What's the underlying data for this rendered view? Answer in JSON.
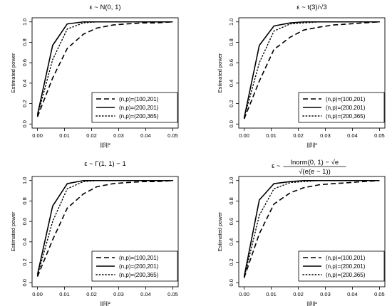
{
  "chart_data": [
    {
      "type": "line",
      "title": "ε ~ N(0, 1)",
      "xlabel": "||β||²",
      "ylabel": "Estimated power",
      "xlim": [
        0,
        0.05
      ],
      "ylim": [
        0,
        1
      ],
      "xticks": [
        "0.00",
        "0.01",
        "0.02",
        "0.03",
        "0.04",
        "0.05"
      ],
      "yticks": [
        "0.0",
        "0.2",
        "0.4",
        "0.6",
        "0.8",
        "1.0"
      ],
      "legend_position": "bottom-right",
      "x": [
        0,
        0.0056,
        0.011,
        0.017,
        0.022,
        0.028,
        0.033,
        0.039,
        0.044,
        0.05
      ],
      "series": [
        {
          "name": "(n,p)=(100,201)",
          "style": "dashed",
          "values": [
            0.07,
            0.45,
            0.74,
            0.88,
            0.94,
            0.97,
            0.98,
            0.99,
            0.99,
            1.0
          ]
        },
        {
          "name": "(n,p)=(200,201)",
          "style": "solid",
          "values": [
            0.09,
            0.77,
            0.98,
            1.0,
            1.0,
            1.0,
            1.0,
            1.0,
            1.0,
            1.0
          ]
        },
        {
          "name": "(n,p)=(200,365)",
          "style": "dotted",
          "values": [
            0.08,
            0.63,
            0.93,
            0.99,
            1.0,
            1.0,
            1.0,
            1.0,
            1.0,
            1.0
          ]
        }
      ]
    },
    {
      "type": "line",
      "title": "ε ~ t(3)/√3",
      "xlabel": "||β||²",
      "ylabel": "Estimated power",
      "xlim": [
        0,
        0.05
      ],
      "ylim": [
        0,
        1
      ],
      "xticks": [
        "0.00",
        "0.01",
        "0.02",
        "0.03",
        "0.04",
        "0.05"
      ],
      "yticks": [
        "0.0",
        "0.2",
        "0.4",
        "0.6",
        "0.8",
        "1.0"
      ],
      "legend_position": "bottom-right",
      "x": [
        0,
        0.0056,
        0.011,
        0.017,
        0.022,
        0.028,
        0.033,
        0.039,
        0.044,
        0.05
      ],
      "series": [
        {
          "name": "(n,p)=(100,201)",
          "style": "dashed",
          "values": [
            0.05,
            0.42,
            0.73,
            0.85,
            0.92,
            0.95,
            0.97,
            0.98,
            0.99,
            1.0
          ]
        },
        {
          "name": "(n,p)=(200,201)",
          "style": "solid",
          "values": [
            0.06,
            0.77,
            0.96,
            0.99,
            1.0,
            1.0,
            1.0,
            1.0,
            1.0,
            1.0
          ]
        },
        {
          "name": "(n,p)=(200,365)",
          "style": "dotted",
          "values": [
            0.06,
            0.6,
            0.91,
            0.98,
            0.99,
            1.0,
            1.0,
            1.0,
            1.0,
            1.0
          ]
        }
      ]
    },
    {
      "type": "line",
      "title": "ε ~ Γ(1, 1) − 1",
      "xlabel": "||β||²",
      "ylabel": "Estimated power",
      "xlim": [
        0,
        0.05
      ],
      "ylim": [
        0,
        1
      ],
      "xticks": [
        "0.00",
        "0.01",
        "0.02",
        "0.03",
        "0.04",
        "0.05"
      ],
      "yticks": [
        "0.0",
        "0.2",
        "0.4",
        "0.6",
        "0.8",
        "1.0"
      ],
      "legend_position": "bottom-right",
      "x": [
        0,
        0.0056,
        0.011,
        0.017,
        0.022,
        0.028,
        0.033,
        0.039,
        0.044,
        0.05
      ],
      "series": [
        {
          "name": "(n,p)=(100,201)",
          "style": "dashed",
          "values": [
            0.06,
            0.42,
            0.73,
            0.87,
            0.94,
            0.97,
            0.98,
            0.99,
            0.99,
            1.0
          ]
        },
        {
          "name": "(n,p)=(200,201)",
          "style": "solid",
          "values": [
            0.08,
            0.75,
            0.97,
            1.0,
            1.0,
            1.0,
            1.0,
            1.0,
            1.0,
            1.0
          ]
        },
        {
          "name": "(n,p)=(200,365)",
          "style": "dotted",
          "values": [
            0.07,
            0.6,
            0.92,
            0.99,
            1.0,
            1.0,
            1.0,
            1.0,
            1.0,
            1.0
          ]
        }
      ]
    },
    {
      "type": "line",
      "title": "ε ~ (lnorm(0, 1) − √e) / √(e(e − 1))",
      "title_prefix": "ε ~",
      "title_numerator": "lnorm(0, 1) − √e",
      "title_denominator": "√(e(e − 1))",
      "xlabel": "||β||²",
      "ylabel": "Estimated power",
      "xlim": [
        0,
        0.05
      ],
      "ylim": [
        0,
        1
      ],
      "xticks": [
        "0.00",
        "0.01",
        "0.02",
        "0.03",
        "0.04",
        "0.05"
      ],
      "yticks": [
        "0.0",
        "0.2",
        "0.4",
        "0.6",
        "0.8",
        "1.0"
      ],
      "legend_position": "bottom-right",
      "x": [
        0,
        0.0056,
        0.011,
        0.017,
        0.022,
        0.028,
        0.033,
        0.039,
        0.044,
        0.05
      ],
      "series": [
        {
          "name": "(n,p)=(100,201)",
          "style": "dashed",
          "values": [
            0.05,
            0.48,
            0.77,
            0.88,
            0.93,
            0.96,
            0.97,
            0.98,
            0.99,
            1.0
          ]
        },
        {
          "name": "(n,p)=(200,201)",
          "style": "solid",
          "values": [
            0.06,
            0.81,
            0.97,
            0.99,
            1.0,
            1.0,
            1.0,
            1.0,
            1.0,
            1.0
          ]
        },
        {
          "name": "(n,p)=(200,365)",
          "style": "dotted",
          "values": [
            0.05,
            0.66,
            0.92,
            0.98,
            0.99,
            1.0,
            1.0,
            1.0,
            1.0,
            1.0
          ]
        }
      ]
    }
  ]
}
